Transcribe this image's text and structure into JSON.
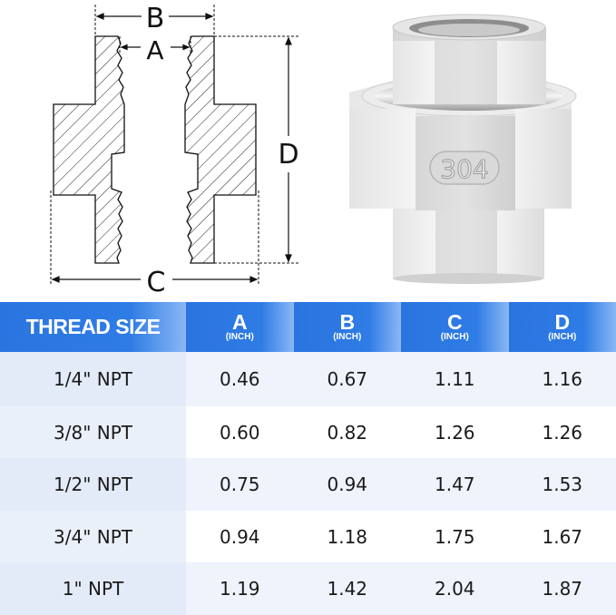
{
  "diagram": {
    "labels": {
      "A": "A",
      "B": "B",
      "C": "C",
      "D": "D"
    }
  },
  "product": {
    "marking": "304"
  },
  "table": {
    "header": {
      "size": "THREAD SIZE",
      "columns": [
        {
          "label": "A",
          "unit": "(INCH)"
        },
        {
          "label": "B",
          "unit": "(INCH)"
        },
        {
          "label": "C",
          "unit": "(INCH)"
        },
        {
          "label": "D",
          "unit": "(INCH)"
        }
      ]
    },
    "rows": [
      {
        "size": "1/4\" NPT",
        "values": [
          "0.46",
          "0.67",
          "1.11",
          "1.16"
        ]
      },
      {
        "size": "3/8\" NPT",
        "values": [
          "0.60",
          "0.82",
          "1.26",
          "1.26"
        ]
      },
      {
        "size": "1/2\" NPT",
        "values": [
          "0.75",
          "0.94",
          "1.47",
          "1.53"
        ]
      },
      {
        "size": "3/4\" NPT",
        "values": [
          "0.94",
          "1.18",
          "1.75",
          "1.67"
        ]
      },
      {
        "size": "1\" NPT",
        "values": [
          "1.19",
          "1.42",
          "2.04",
          "1.87"
        ]
      }
    ],
    "colors": {
      "header": "#2a74e0",
      "first_column": "#e6edf9",
      "stripe": "#eef3fc"
    }
  }
}
